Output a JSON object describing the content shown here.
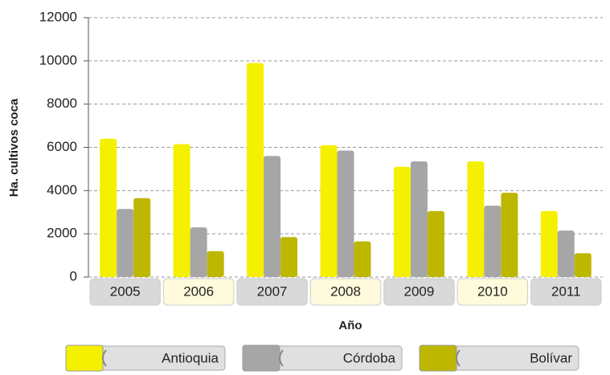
{
  "chart_data": {
    "type": "bar",
    "y_label": "Ha. cultivos coca",
    "x_label": "Año",
    "categories": [
      "2005",
      "2006",
      "2007",
      "2008",
      "2009",
      "2010",
      "2011"
    ],
    "series": [
      {
        "name": "Antioquia",
        "color": "#f5ef00",
        "values": [
          6400,
          6150,
          9900,
          6100,
          5100,
          5350,
          3050
        ]
      },
      {
        "name": "Córdoba",
        "color": "#a6a6a6",
        "values": [
          3150,
          2300,
          5600,
          5850,
          5350,
          3300,
          2150
        ]
      },
      {
        "name": "Bolívar",
        "color": "#bdb700",
        "values": [
          3650,
          1200,
          1850,
          1650,
          3050,
          3900,
          1100
        ]
      }
    ],
    "ylim": [
      0,
      12000
    ],
    "yticks": [
      0,
      2000,
      4000,
      6000,
      8000,
      10000,
      12000
    ],
    "grid": true
  }
}
